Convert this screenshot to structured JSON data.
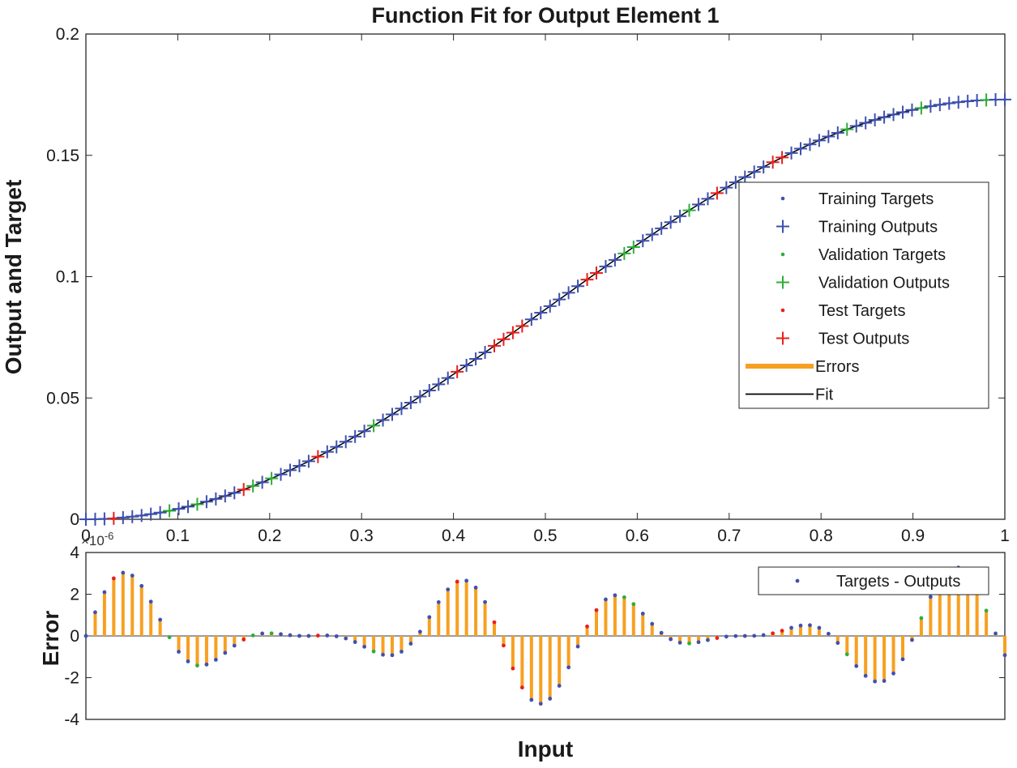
{
  "colors": {
    "training": "#3f51b0",
    "validation": "#2fae3a",
    "test": "#e8201c",
    "errors": "#f7a021",
    "fit": "#000000",
    "axis": "#262626"
  },
  "chart_data": [
    {
      "type": "line",
      "title": "Function Fit for Output Element 1",
      "xlabel": "",
      "ylabel": "Output and Target",
      "xlim": [
        0,
        1
      ],
      "ylim": [
        0,
        0.2
      ],
      "xticks": [
        0,
        0.1,
        0.2,
        0.3,
        0.4,
        0.5,
        0.6,
        0.7,
        0.8,
        0.9,
        1
      ],
      "xtick_labels": [
        "0",
        "0.1",
        "0.2",
        "0.3",
        "0.4",
        "0.5",
        "0.6",
        "0.7",
        "0.8",
        "0.9",
        "1"
      ],
      "yticks": [
        0,
        0.05,
        0.1,
        0.15,
        0.2
      ],
      "ytick_labels": [
        "0",
        "0.05",
        "0.1",
        "0.15",
        "0.2"
      ],
      "fit_formula": "0.0865*(1-cos(pi*x))",
      "sample_count": 100,
      "x_range": [
        0,
        1
      ],
      "validation_x": [
        0.09,
        0.12,
        0.18,
        0.2,
        0.31,
        0.59,
        0.66,
        0.83,
        0.91,
        0.98
      ],
      "test_x": [
        0.03,
        0.17,
        0.25,
        0.4,
        0.45,
        0.47,
        0.55,
        0.69,
        0.75,
        0.76
      ],
      "legend": {
        "position": "right",
        "entries": [
          {
            "label": "Training Targets",
            "marker": "dot",
            "color": "training"
          },
          {
            "label": "Training Outputs",
            "marker": "plus",
            "color": "training"
          },
          {
            "label": "Validation Targets",
            "marker": "dot",
            "color": "validation"
          },
          {
            "label": "Validation Outputs",
            "marker": "plus",
            "color": "validation"
          },
          {
            "label": "Test Targets",
            "marker": "dot",
            "color": "test"
          },
          {
            "label": "Test Outputs",
            "marker": "plus",
            "color": "test"
          },
          {
            "label": "Errors",
            "marker": "line-thick",
            "color": "errors"
          },
          {
            "label": "Fit",
            "marker": "line",
            "color": "fit"
          }
        ]
      }
    },
    {
      "type": "stem",
      "title": "",
      "xlabel": "Input",
      "ylabel": "Error",
      "xlim": [
        0,
        1
      ],
      "ylim": [
        -4,
        4
      ],
      "yticks": [
        -4,
        -2,
        0,
        2,
        4
      ],
      "ytick_labels": [
        "-4",
        "-2",
        "0",
        "2",
        "4"
      ],
      "y_exponent_label": "×10",
      "y_exponent_power": "-6",
      "error_formula": "3.3*sin(2*pi*x*5.55)*(0.5+0.5*cos(2*pi*x*2.1))",
      "legend": {
        "position": "top-right",
        "entries": [
          {
            "label": "Targets - Outputs",
            "marker": "dot",
            "color": "training"
          }
        ]
      }
    }
  ]
}
